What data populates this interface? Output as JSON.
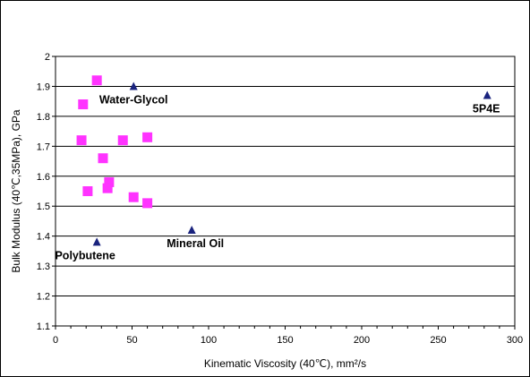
{
  "chart_data": {
    "type": "scatter",
    "title": "",
    "xlabel": "Kinematic Viscosity (40℃), mm²/s",
    "ylabel": "Bulk Modulus (40℃,35MPa), GPa",
    "xlim": [
      0,
      300
    ],
    "ylim": [
      1.1,
      2.0
    ],
    "x_ticks": [
      0,
      50,
      100,
      150,
      200,
      250,
      300
    ],
    "y_ticks": [
      1.1,
      1.2,
      1.3,
      1.4,
      1.5,
      1.6,
      1.7,
      1.8,
      1.9,
      2.0
    ],
    "x_tick_labels": [
      "0",
      "50",
      "100",
      "150",
      "200",
      "250",
      "300"
    ],
    "y_tick_labels": [
      "1.1",
      "1.2",
      "1.3",
      "1.4",
      "1.5",
      "1.6",
      "1.7",
      "1.8",
      "1.9",
      "2"
    ],
    "grid": "horizontal",
    "legend": "none",
    "colors": {
      "squares": "#ff33ff",
      "triangles": "#1a237e",
      "grid": "#000000"
    },
    "series": [
      {
        "marker": "square",
        "points": [
          {
            "x": 27,
            "y": 1.92
          },
          {
            "x": 18,
            "y": 1.84
          },
          {
            "x": 17,
            "y": 1.72
          },
          {
            "x": 44,
            "y": 1.72
          },
          {
            "x": 60,
            "y": 1.73
          },
          {
            "x": 31,
            "y": 1.66
          },
          {
            "x": 35,
            "y": 1.58
          },
          {
            "x": 34,
            "y": 1.56
          },
          {
            "x": 21,
            "y": 1.55
          },
          {
            "x": 51,
            "y": 1.53
          },
          {
            "x": 60,
            "y": 1.51
          }
        ]
      },
      {
        "marker": "triangle",
        "points": [
          {
            "x": 51,
            "y": 1.9,
            "label": "Water-Glycol"
          },
          {
            "x": 282,
            "y": 1.87,
            "label": "5P4E"
          },
          {
            "x": 89,
            "y": 1.42,
            "label": "Mineral Oil"
          },
          {
            "x": 27,
            "y": 1.38,
            "label": "Polybutene"
          }
        ]
      }
    ]
  }
}
